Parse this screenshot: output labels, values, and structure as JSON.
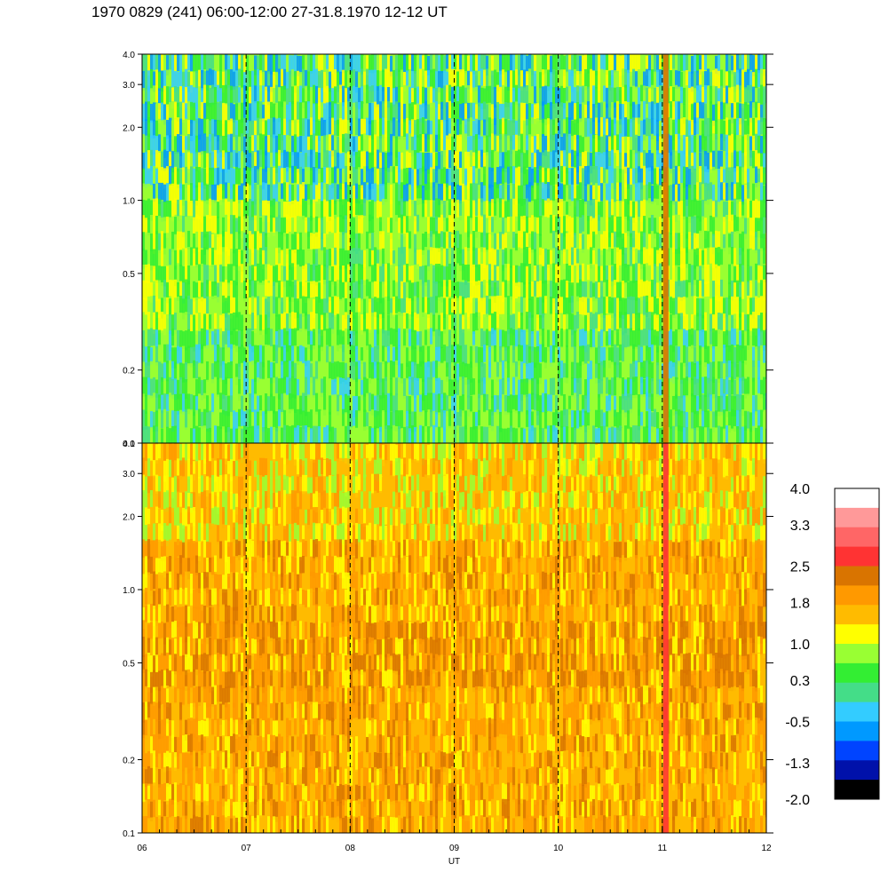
{
  "title": "1970 0829 (241) 06:00-12:00 27-31.8.1970  12-12 UT",
  "chart_data": {
    "type": "heatmap",
    "x": {
      "label": "UT",
      "range": [
        6,
        12
      ],
      "tick_labels": [
        "06",
        "07",
        "08",
        "09",
        "10",
        "11",
        "12"
      ],
      "dashed_hour_lines": [
        7,
        8,
        9,
        10,
        11
      ]
    },
    "panels": [
      {
        "name": "upper",
        "y_scale": "log",
        "y_range": [
          0.1,
          4.0
        ],
        "y_ticks": [
          0.1,
          0.2,
          0.5,
          1.0,
          2.0,
          3.0,
          4.0
        ],
        "y_tick_labels": [
          "0.1",
          "0.2",
          "0.5",
          "1.0",
          "2.0",
          "3.0",
          "4.0"
        ]
      },
      {
        "name": "lower",
        "y_scale": "log",
        "y_range": [
          0.1,
          4.0
        ],
        "y_ticks": [
          0.1,
          0.2,
          0.5,
          1.0,
          2.0,
          3.0,
          4.0
        ],
        "y_tick_labels": [
          "0.1",
          "0.2",
          "0.5",
          "1.0",
          "2.0",
          "3.0",
          "4.0"
        ]
      }
    ],
    "colorbar": {
      "range": [
        -2.0,
        4.0
      ],
      "labels": [
        "4.0",
        "3.3",
        "2.5",
        "1.8",
        "1.0",
        "0.3",
        "-0.5",
        "-1.3",
        "-2.0"
      ],
      "colors": [
        "#ffffff",
        "#ff9999",
        "#ff6666",
        "#ff3333",
        "#d97400",
        "#ff9900",
        "#ffbb00",
        "#ffff00",
        "#99ff33",
        "#33ee33",
        "#44dd88",
        "#33ccff",
        "#0099ff",
        "#0044ff",
        "#0011aa",
        "#000000"
      ]
    }
  }
}
